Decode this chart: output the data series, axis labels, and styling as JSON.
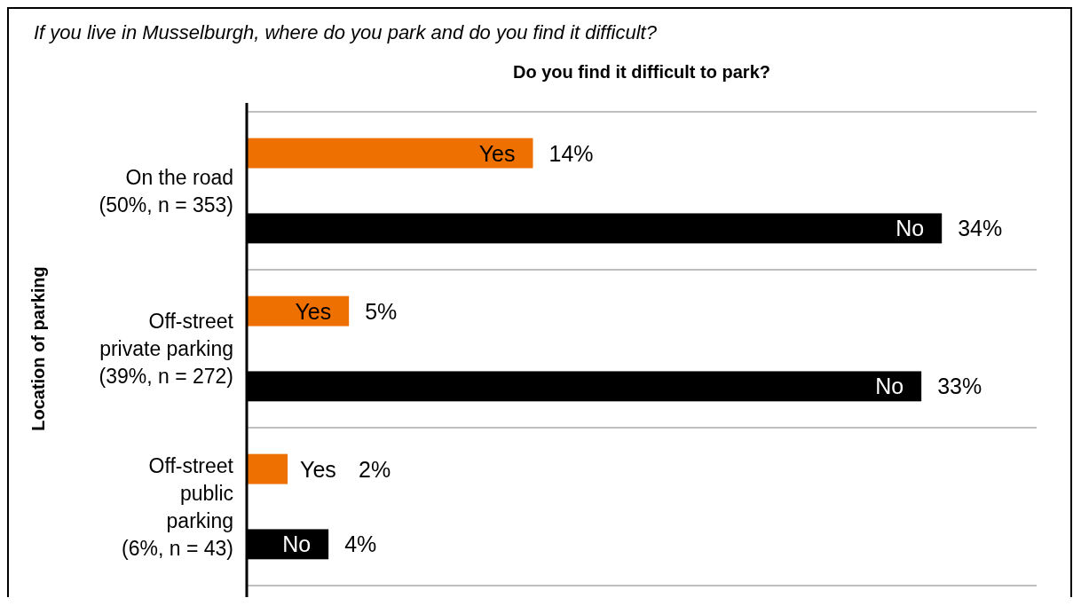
{
  "chart_data": {
    "type": "bar",
    "orientation": "horizontal",
    "title": "If you live in Musselburgh, where do you park and do you find it difficult?",
    "subtitle": "Do you find it difficult to park?",
    "ylabel": "Location of parking",
    "categories": [
      "On the road\n(50%, n = 353)",
      "Off-street\nprivate parking\n(39%, n = 272)",
      "Off-street\npublic\nparking\n(6%, n = 43)"
    ],
    "series": [
      {
        "name": "Yes",
        "color": "#ed7000",
        "values": [
          14,
          5,
          2
        ],
        "value_labels": [
          "14%",
          "5%",
          "2%"
        ]
      },
      {
        "name": "No",
        "color": "#000000",
        "values": [
          34,
          33,
          4
        ],
        "value_labels": [
          "34%",
          "33%",
          "4%"
        ]
      }
    ],
    "grid": "y"
  }
}
